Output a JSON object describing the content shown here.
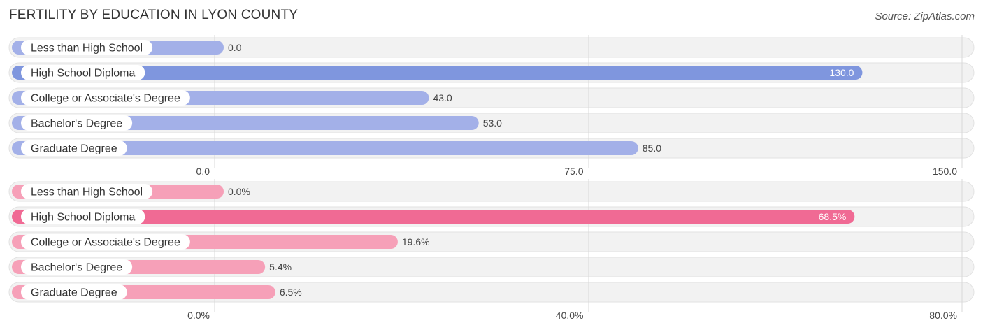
{
  "title": "FERTILITY BY EDUCATION IN LYON COUNTY",
  "source": "Source: ZipAtlas.com",
  "chart_data": [
    {
      "type": "bar",
      "orientation": "horizontal",
      "categories": [
        "Less than High School",
        "High School Diploma",
        "College or Associate's Degree",
        "Bachelor's Degree",
        "Graduate Degree"
      ],
      "values": [
        0.0,
        130.0,
        43.0,
        53.0,
        85.0
      ],
      "value_labels": [
        "0.0",
        "130.0",
        "43.0",
        "53.0",
        "85.0"
      ],
      "xlim": [
        0,
        150
      ],
      "ticks": [
        0,
        75,
        150
      ],
      "tick_labels": [
        "0.0",
        "75.0",
        "150.0"
      ],
      "colors": {
        "bar": "#a3b0e8",
        "highlight": "#7f96de"
      },
      "grid": true
    },
    {
      "type": "bar",
      "orientation": "horizontal",
      "categories": [
        "Less than High School",
        "High School Diploma",
        "College or Associate's Degree",
        "Bachelor's Degree",
        "Graduate Degree"
      ],
      "values": [
        0.0,
        68.5,
        19.6,
        5.4,
        6.5
      ],
      "value_labels": [
        "0.0%",
        "68.5%",
        "19.6%",
        "5.4%",
        "6.5%"
      ],
      "xlim": [
        0,
        80
      ],
      "ticks": [
        0,
        40,
        80
      ],
      "tick_labels": [
        "0.0%",
        "40.0%",
        "80.0%"
      ],
      "colors": {
        "bar": "#f6a0b8",
        "highlight": "#f06a94"
      },
      "grid": true
    }
  ]
}
